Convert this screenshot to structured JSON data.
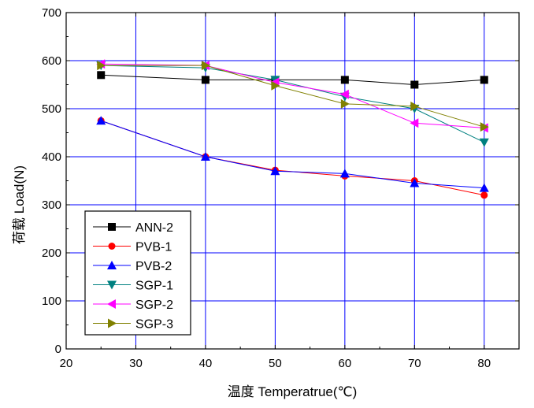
{
  "chart_data": {
    "type": "line",
    "title": "",
    "xlabel": "温度 Temperatrue(℃)",
    "ylabel": "荷载 Load(N)",
    "xlim": [
      20,
      85
    ],
    "ylim": [
      0,
      700
    ],
    "xticks": [
      20,
      30,
      40,
      50,
      60,
      70,
      80
    ],
    "yticks": [
      0,
      100,
      200,
      300,
      400,
      500,
      600,
      700
    ],
    "grid": true,
    "grid_color": "#0000ff",
    "legend_position": "bottom-left",
    "x": [
      25,
      40,
      50,
      60,
      70,
      80
    ],
    "series": [
      {
        "name": "ANN-2",
        "color": "#000000",
        "marker": "square",
        "values": [
          570,
          560,
          560,
          560,
          550,
          560
        ]
      },
      {
        "name": "PVB-1",
        "color": "#ff0000",
        "marker": "circle",
        "values": [
          475,
          400,
          372,
          360,
          350,
          320
        ]
      },
      {
        "name": "PVB-2",
        "color": "#0000ff",
        "marker": "triangle-up",
        "values": [
          475,
          400,
          370,
          365,
          345,
          335
        ]
      },
      {
        "name": "SGP-1",
        "color": "#008080",
        "marker": "triangle-down",
        "values": [
          590,
          585,
          560,
          525,
          500,
          430
        ]
      },
      {
        "name": "SGP-2",
        "color": "#ff00ff",
        "marker": "triangle-left",
        "values": [
          593,
          590,
          555,
          530,
          470,
          460
        ]
      },
      {
        "name": "SGP-3",
        "color": "#808000",
        "marker": "triangle-right",
        "values": [
          590,
          590,
          548,
          510,
          505,
          462
        ]
      }
    ]
  }
}
